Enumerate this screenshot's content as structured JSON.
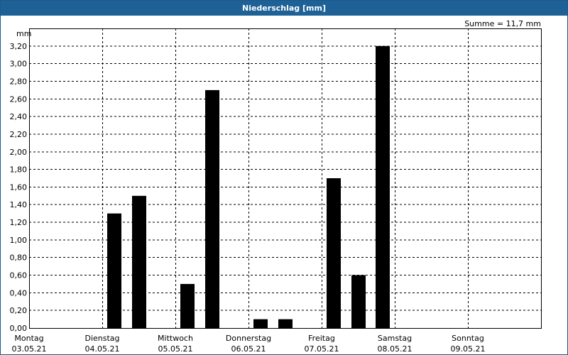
{
  "window": {
    "title": "Niederschlag [mm]"
  },
  "chart_data": {
    "type": "bar",
    "title": "Niederschlag [mm]",
    "unit": "mm",
    "sum_label": "Summe = 11,7 mm",
    "ylim": [
      0,
      3.4
    ],
    "y_ticks": [
      "0,00",
      "0,20",
      "0,40",
      "0,60",
      "0,80",
      "1,00",
      "1,20",
      "1,40",
      "1,60",
      "1,80",
      "2,00",
      "2,20",
      "2,40",
      "2,60",
      "2,80",
      "3,00",
      "3,20"
    ],
    "days": [
      {
        "name": "Montag",
        "date": "03.05.21"
      },
      {
        "name": "Dienstag",
        "date": "04.05.21"
      },
      {
        "name": "Mittwoch",
        "date": "05.05.21"
      },
      {
        "name": "Donnerstag",
        "date": "06.05.21"
      },
      {
        "name": "Freitag",
        "date": "07.05.21"
      },
      {
        "name": "Samstag",
        "date": "08.05.21"
      },
      {
        "name": "Sonntag",
        "date": "09.05.21"
      }
    ],
    "periods_per_day": 3,
    "values": [
      0,
      0,
      0,
      1.3,
      1.5,
      0,
      0.5,
      2.7,
      0,
      0.1,
      0.1,
      0,
      1.7,
      0.6,
      3.2,
      0,
      0,
      0,
      0,
      0,
      0
    ],
    "grid": true,
    "colors": {
      "bar": "#000000",
      "title_bar": "#1d6196",
      "title_text": "#ffffff"
    }
  }
}
